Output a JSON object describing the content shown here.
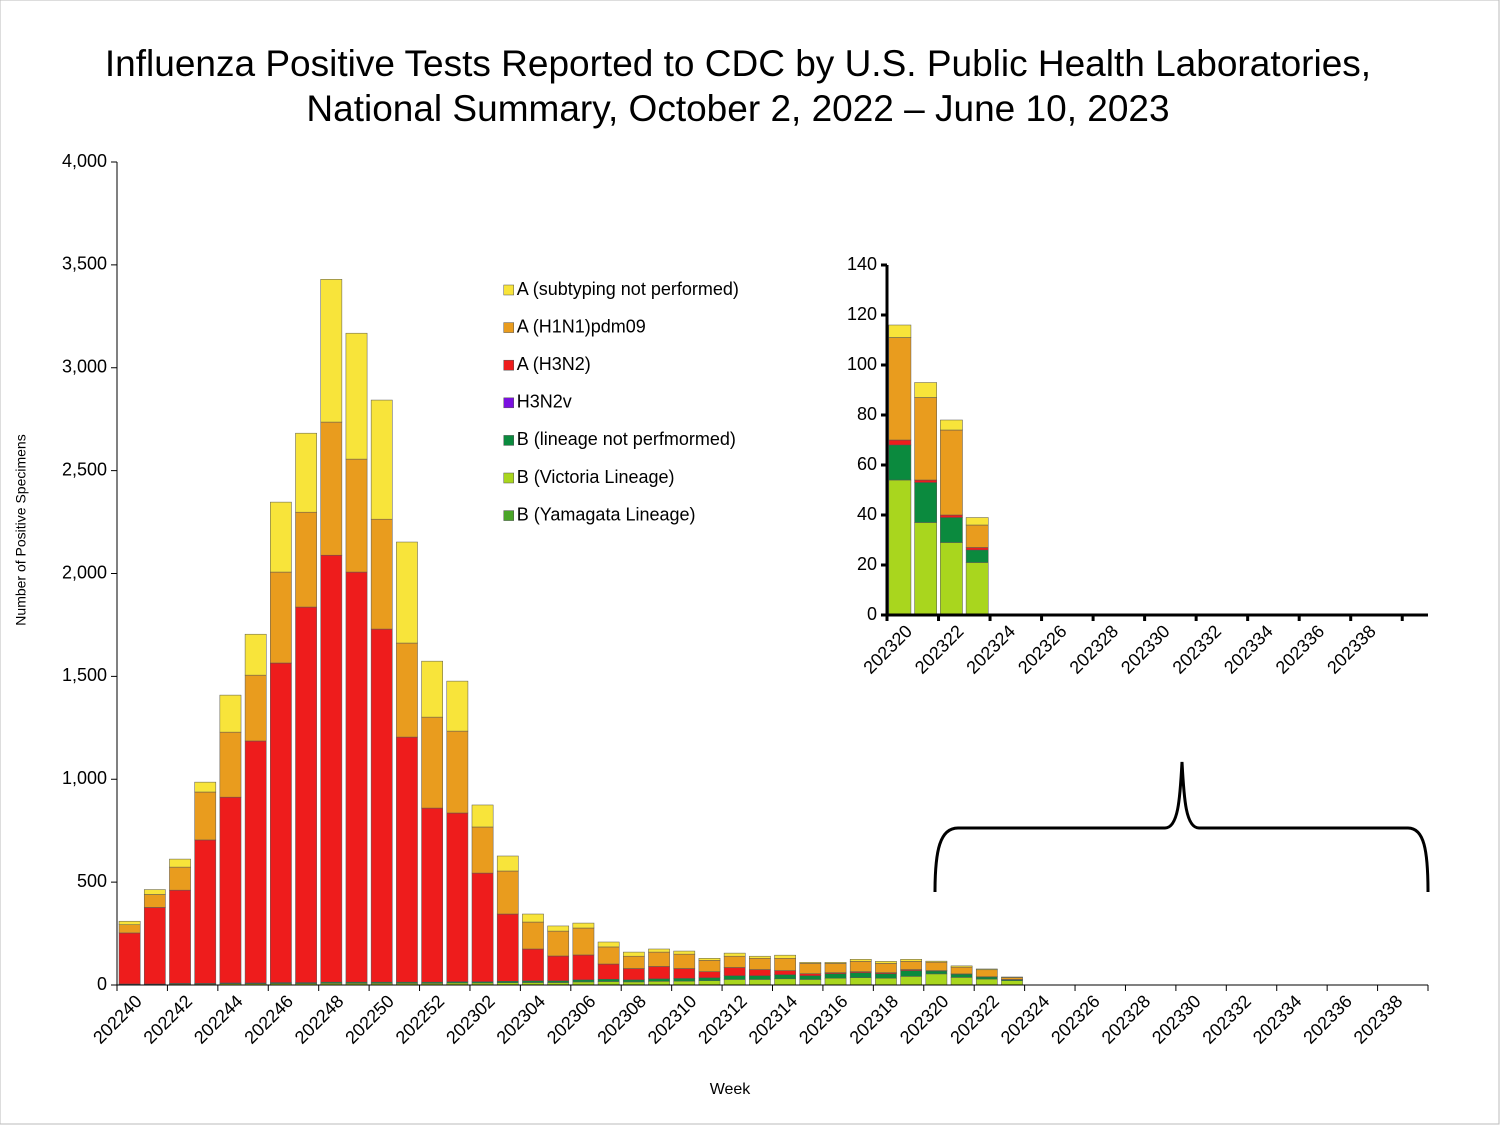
{
  "chart_data": [
    {
      "type": "stacked_bar",
      "title": "Influenza Positive Tests Reported to CDC by U.S. Public Health Laboratories,",
      "subtitle": "National Summary, October 2, 2022 – June 10, 2023",
      "x_label": "Week",
      "y_label": "Number of Positive Specimens",
      "legend": "upper center",
      "categories": [
        "202240",
        null,
        "202242",
        null,
        "202244",
        null,
        "202246",
        null,
        "202248",
        null,
        "202250",
        null,
        "202252",
        null,
        "202302",
        null,
        "202304",
        null,
        "202306",
        null,
        "202308",
        null,
        "202310",
        null,
        "202312",
        null,
        "202314",
        null,
        "202316",
        null,
        "202318",
        null,
        "202320",
        null,
        "202322",
        null,
        "202324",
        null,
        "202326",
        null,
        "202328",
        null,
        "202330",
        null,
        "202332",
        null,
        "202334",
        null,
        "202336",
        null,
        "202338",
        null
      ],
      "ylim": [
        0,
        4000
      ],
      "yticks": [
        0,
        500,
        {
          "value": 1000,
          "label": "1,000"
        },
        {
          "value": 1500,
          "label": "1,500"
        },
        {
          "value": 2000,
          "label": "2,000"
        },
        {
          "value": 2500,
          "label": "2,500"
        },
        {
          "value": 3000,
          "label": "3,000"
        },
        {
          "value": 3500,
          "label": "3,500"
        },
        {
          "value": 4000,
          "label": "4,000"
        }
      ],
      "series": [
        {
          "name": "A (subtyping not performed)",
          "color": "#f8e43a",
          "values": [
            17,
            24,
            39,
            48,
            180,
            199,
            340,
            384,
            694,
            612,
            579,
            491,
            272,
            243,
            107,
            73,
            39,
            25,
            24,
            24,
            20,
            15,
            15,
            10,
            15,
            10,
            15,
            5,
            5,
            10,
            10,
            10,
            5,
            6,
            4,
            3,
            null,
            null,
            null,
            null,
            null,
            null,
            null,
            null,
            null,
            null,
            null,
            null,
            null,
            null,
            null,
            null
          ]
        },
        {
          "name": "A (H1N1)pdm09",
          "color": "#e99c1e",
          "values": [
            40,
            63,
            112,
            233,
            316,
            320,
            442,
            461,
            647,
            549,
            534,
            457,
            442,
            398,
            224,
            209,
            131,
            121,
            131,
            83,
            60,
            70,
            70,
            55,
            55,
            55,
            60,
            50,
            45,
            50,
            45,
            40,
            41,
            33,
            34,
            9,
            null,
            null,
            null,
            null,
            null,
            null,
            null,
            null,
            null,
            null,
            null,
            null,
            null,
            null,
            null,
            null
          ]
        },
        {
          "name": "A (H3N2)",
          "color": "#ee1c1c",
          "values": [
            248,
            372,
            453,
            697,
            903,
            1176,
            1553,
            1825,
            2075,
            1993,
            1716,
            1191,
            846,
            820,
            528,
            327,
            155,
            121,
            121,
            74,
            55,
            60,
            48,
            30,
            40,
            30,
            20,
            10,
            5,
            5,
            5,
            5,
            2,
            1,
            1,
            1,
            null,
            null,
            null,
            null,
            null,
            null,
            null,
            null,
            null,
            null,
            null,
            null,
            null,
            null,
            null,
            null
          ]
        },
        {
          "name": "H3N2v",
          "color": "#7a10e0",
          "values": [
            0,
            0,
            0,
            0,
            0,
            0,
            0,
            0,
            0,
            0,
            0,
            0,
            0,
            0,
            0,
            0,
            0,
            0,
            0,
            0,
            0,
            0,
            0,
            0,
            0,
            0,
            0,
            0,
            0,
            0,
            0,
            0,
            0,
            0,
            0,
            0,
            null,
            null,
            null,
            null,
            null,
            null,
            null,
            null,
            null,
            null,
            null,
            null,
            null,
            null,
            null,
            null
          ]
        },
        {
          "name": "B (lineage not perfmormed)",
          "color": "#0b8a3e",
          "values": [
            2,
            2,
            3,
            3,
            4,
            4,
            5,
            5,
            6,
            6,
            6,
            6,
            6,
            6,
            6,
            7,
            8,
            8,
            10,
            11,
            10,
            12,
            13,
            14,
            18,
            18,
            20,
            18,
            22,
            24,
            22,
            28,
            14,
            16,
            10,
            5,
            null,
            null,
            null,
            null,
            null,
            null,
            null,
            null,
            null,
            null,
            null,
            null,
            null,
            null,
            null,
            null
          ]
        },
        {
          "name": "B (Victoria Lineage)",
          "color": "#a9d61e",
          "values": [
            3,
            3,
            5,
            5,
            6,
            6,
            7,
            7,
            8,
            8,
            8,
            8,
            8,
            10,
            10,
            11,
            12,
            12,
            15,
            17,
            15,
            18,
            19,
            21,
            27,
            27,
            30,
            27,
            33,
            36,
            33,
            42,
            54,
            37,
            29,
            21,
            null,
            null,
            null,
            null,
            null,
            null,
            null,
            null,
            null,
            null,
            null,
            null,
            null,
            null,
            null,
            null
          ]
        },
        {
          "name": "B (Yamagata Lineage)",
          "color": "#4aa528",
          "values": [
            0,
            0,
            0,
            0,
            0,
            0,
            0,
            0,
            0,
            0,
            0,
            0,
            0,
            0,
            0,
            0,
            0,
            0,
            0,
            0,
            0,
            0,
            0,
            0,
            0,
            0,
            0,
            0,
            0,
            0,
            0,
            0,
            0,
            0,
            0,
            0,
            null,
            null,
            null,
            null,
            null,
            null,
            null,
            null,
            null,
            null,
            null,
            null,
            null,
            null,
            null,
            null
          ]
        }
      ]
    },
    {
      "type": "stacked_bar",
      "categories": [
        "202320",
        null,
        "202322",
        null,
        "202324",
        null,
        "202326",
        null,
        "202328",
        null,
        "202330",
        null,
        "202332",
        null,
        "202334",
        null,
        "202336",
        null,
        "202338",
        null,
        null
      ],
      "ylim": [
        0,
        140
      ],
      "yticks": [
        0,
        20,
        40,
        60,
        80,
        100,
        120,
        140
      ],
      "series": [
        {
          "color": "#f8e43a",
          "values": [
            5,
            6,
            4,
            3,
            null,
            null,
            null,
            null,
            null,
            null,
            null,
            null,
            null,
            null,
            null,
            null,
            null,
            null,
            null,
            null,
            null
          ]
        },
        {
          "color": "#e99c1e",
          "values": [
            41,
            33,
            34,
            9,
            null,
            null,
            null,
            null,
            null,
            null,
            null,
            null,
            null,
            null,
            null,
            null,
            null,
            null,
            null,
            null,
            null
          ]
        },
        {
          "color": "#ee1c1c",
          "values": [
            2,
            1,
            1,
            1,
            null,
            null,
            null,
            null,
            null,
            null,
            null,
            null,
            null,
            null,
            null,
            null,
            null,
            null,
            null,
            null,
            null
          ]
        },
        {
          "color": "#7a10e0",
          "values": [
            0,
            0,
            0,
            0,
            null,
            null,
            null,
            null,
            null,
            null,
            null,
            null,
            null,
            null,
            null,
            null,
            null,
            null,
            null,
            null,
            null
          ]
        },
        {
          "color": "#0b8a3e",
          "values": [
            14,
            16,
            10,
            5,
            null,
            null,
            null,
            null,
            null,
            null,
            null,
            null,
            null,
            null,
            null,
            null,
            null,
            null,
            null,
            null,
            null
          ]
        },
        {
          "color": "#a9d61e",
          "values": [
            54,
            37,
            29,
            21,
            null,
            null,
            null,
            null,
            null,
            null,
            null,
            null,
            null,
            null,
            null,
            null,
            null,
            null,
            null,
            null,
            null
          ]
        },
        {
          "color": "#4aa528",
          "values": [
            0,
            0,
            0,
            0,
            null,
            null,
            null,
            null,
            null,
            null,
            null,
            null,
            null,
            null,
            null,
            null,
            null,
            null,
            null,
            null,
            null
          ]
        }
      ]
    }
  ]
}
